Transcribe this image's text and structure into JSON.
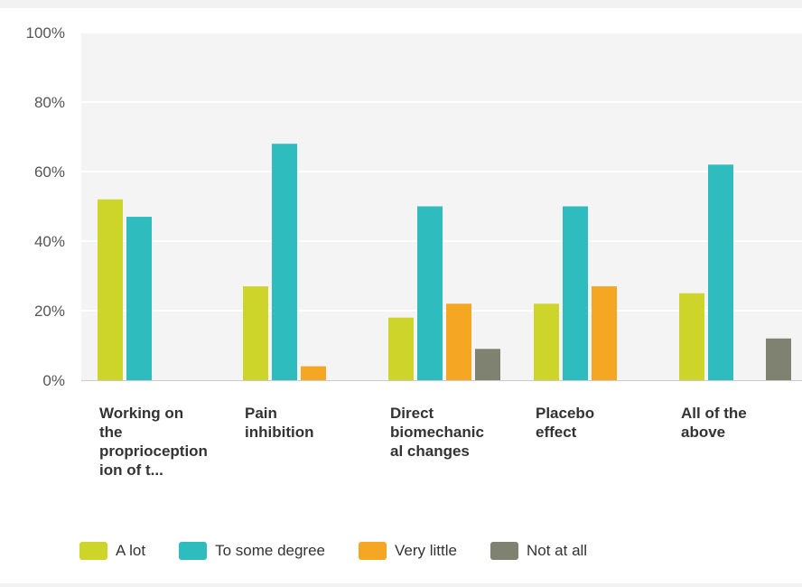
{
  "chart_data": {
    "type": "bar",
    "title": "",
    "xlabel": "",
    "ylabel": "",
    "ylim": [
      0,
      100
    ],
    "yticks": [
      "0%",
      "20%",
      "40%",
      "60%",
      "80%",
      "100%"
    ],
    "grid": true,
    "legend_position": "bottom",
    "categories": [
      "Working on\nthe\nproprioception\nion of t...",
      "Pain\ninhibition",
      "Direct\nbiomechanic\nal changes",
      "Placebo\neffect",
      "All of the\nabove"
    ],
    "series": [
      {
        "name": "A lot",
        "color": "#cdd42a",
        "values": [
          52,
          27,
          18,
          22,
          25
        ]
      },
      {
        "name": "To some degree",
        "color": "#2fbcbf",
        "values": [
          47,
          68,
          50,
          50,
          62
        ]
      },
      {
        "name": "Very little",
        "color": "#f5a623",
        "values": [
          0,
          4,
          22,
          27,
          0
        ]
      },
      {
        "name": "Not at all",
        "color": "#7f8270",
        "values": [
          0,
          0,
          9,
          0,
          12
        ]
      }
    ]
  }
}
